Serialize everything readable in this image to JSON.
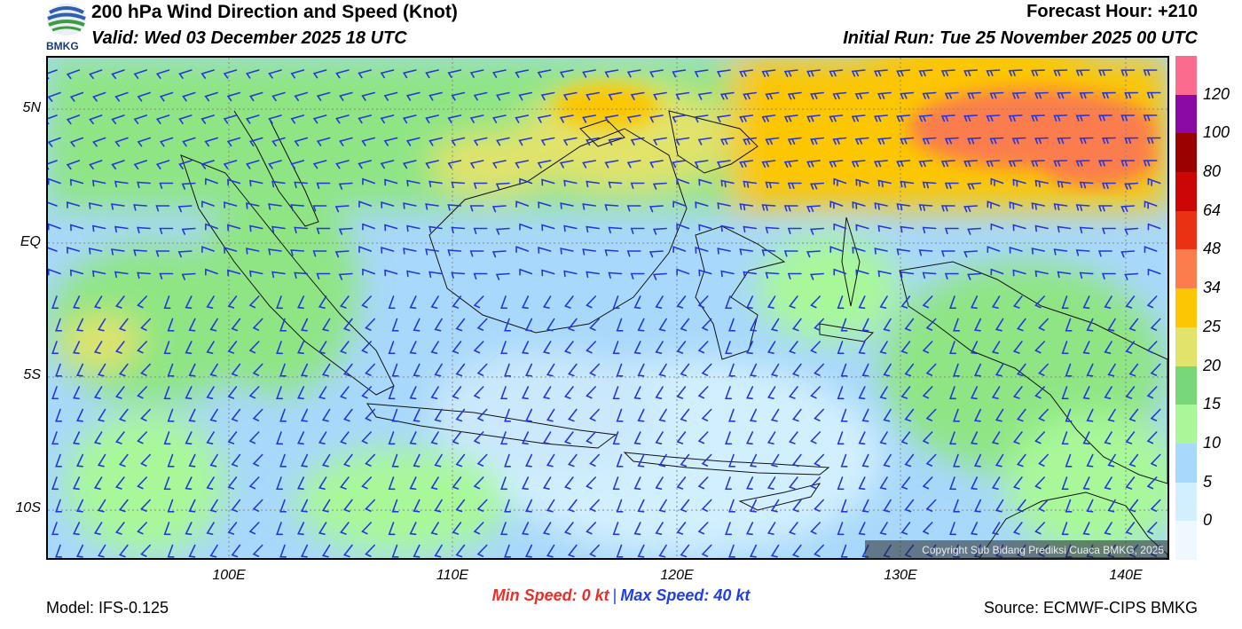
{
  "header": {
    "logo_text": "BMKG",
    "title": "200 hPa Wind Direction and Speed (Knot)",
    "valid": "Valid: Wed 03 December 2025 18 UTC",
    "forecast_hour": "Forecast Hour: +210",
    "initial_run": "Initial Run: Tue 25 November 2025 00 UTC"
  },
  "map": {
    "lat_labels": [
      "5N",
      "EQ",
      "5S",
      "10S"
    ],
    "lon_labels": [
      "100E",
      "110E",
      "120E",
      "130E",
      "140E"
    ],
    "copyright": "Copyright Sub Bidang Prediksi Cuaca BMKG, 2025"
  },
  "colorbar": {
    "labels": [
      "120",
      "100",
      "80",
      "64",
      "48",
      "34",
      "25",
      "20",
      "15",
      "10",
      "5",
      "0"
    ],
    "colors": [
      "#fb6b8e",
      "#8b0aa5",
      "#9a0202",
      "#cc0606",
      "#ea3114",
      "#fb7d4e",
      "#fcc604",
      "#e2e36a",
      "#78d776",
      "#a8f89a",
      "#a8d8fb",
      "#d2efff",
      "#f0f8ff"
    ]
  },
  "footer": {
    "model": "Model: IFS-0.125",
    "min_speed": "Min Speed:   0 kt",
    "max_speed": "Max Speed:  40 kt",
    "source": "Source: ECMWF-CIPS BMKG"
  }
}
